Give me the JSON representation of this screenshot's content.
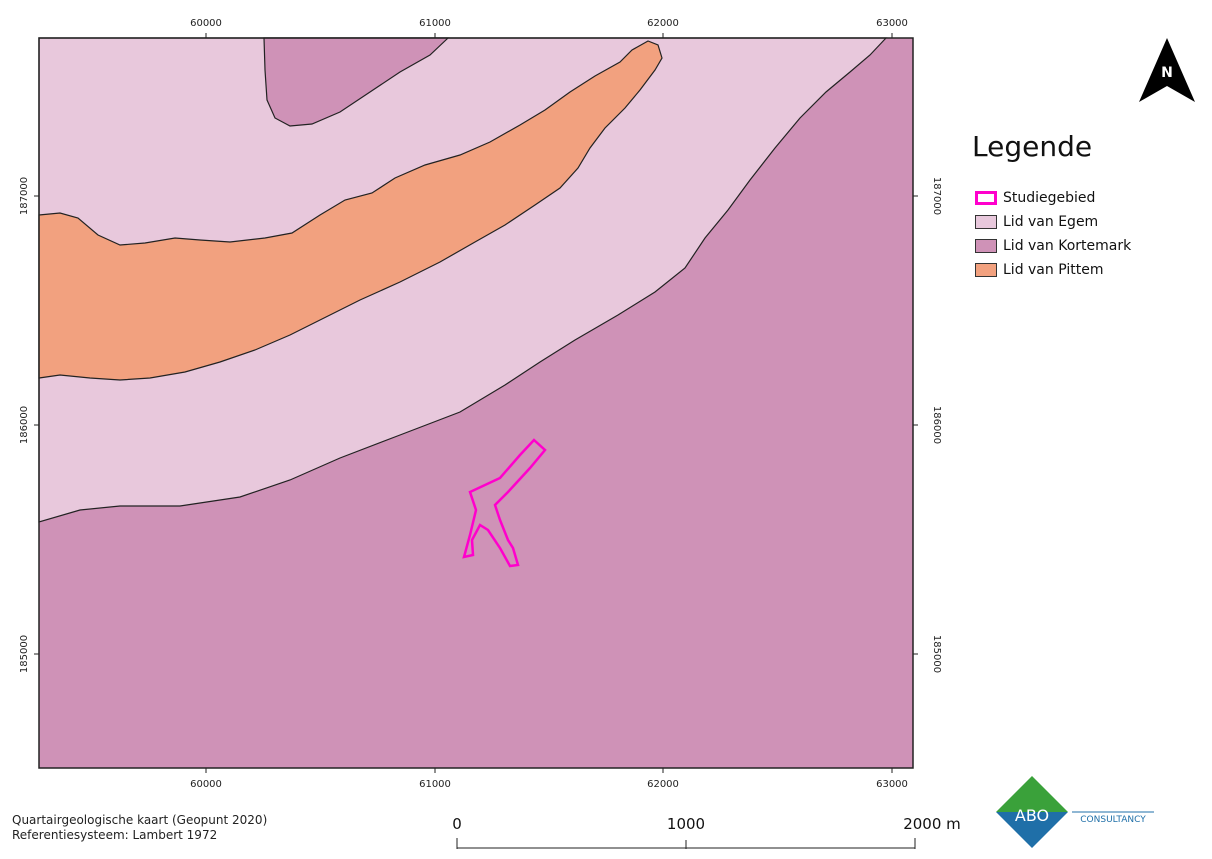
{
  "map": {
    "x_ticks": [
      "60000",
      "61000",
      "62000",
      "63000"
    ],
    "y_ticks": [
      "187000",
      "186000",
      "185000"
    ],
    "north_label": "N"
  },
  "legend": {
    "title": "Legende",
    "items": [
      {
        "label": "Studiegebied",
        "style": "outline",
        "color": "#ff00cc"
      },
      {
        "label": "Lid van Egem",
        "style": "fill",
        "color": "#e8c8dc"
      },
      {
        "label": "Lid van Kortemark",
        "style": "fill",
        "color": "#cf92b7"
      },
      {
        "label": "Lid van Pittem",
        "style": "fill",
        "color": "#f2a17f"
      }
    ]
  },
  "credits": {
    "line1": "Quartairgeologische kaart (Geopunt 2020)",
    "line2": "Referentiesysteem: Lambert 1972"
  },
  "scalebar": {
    "labels": [
      "0",
      "1000",
      "2000 m"
    ]
  },
  "logo": {
    "text": "ABO",
    "subtext": "CONSULTANCY",
    "colors": {
      "green": "#3aa13a",
      "blue": "#1f6fa8"
    }
  }
}
